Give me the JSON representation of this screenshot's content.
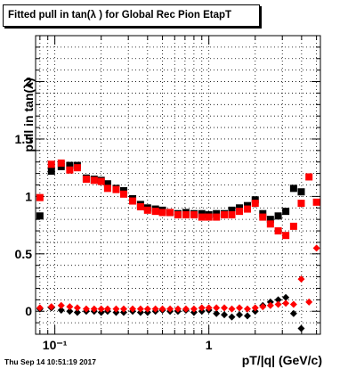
{
  "page": {
    "title": "Fitted pull in tan(λ ) for Global Rec Pion EtapT",
    "timestamp": "Thu Sep 14 10:51:19 2017"
  },
  "chart_data": {
    "type": "scatter",
    "title": "Fitted pull in tan(λ ) for Global Rec Pion EtapT",
    "xlabel": "pT/|q| (GeV/c)",
    "ylabel": "pull in tan(λ)",
    "xscale": "log",
    "xlim": [
      0.075,
      5.3
    ],
    "ylim": [
      -0.2,
      2.4
    ],
    "grid": true,
    "x_ticklabels": [
      "10⁻¹",
      "1"
    ],
    "y_ticks": [
      0,
      0.5,
      1,
      1.5,
      2
    ],
    "y_ticklabels": [
      "0",
      "0.5",
      "1",
      "1.5",
      "2"
    ],
    "colors": {
      "black_series": "#000000",
      "red_series": "#ff0000"
    },
    "x": [
      0.08,
      0.095,
      0.11,
      0.125,
      0.14,
      0.16,
      0.18,
      0.2,
      0.22,
      0.25,
      0.28,
      0.32,
      0.36,
      0.4,
      0.45,
      0.5,
      0.56,
      0.63,
      0.71,
      0.8,
      0.9,
      1.0,
      1.12,
      1.26,
      1.41,
      1.58,
      1.78,
      2.0,
      2.24,
      2.51,
      2.82,
      3.16,
      3.55,
      3.98,
      4.47,
      5.0
    ],
    "series": [
      {
        "marker": "square",
        "color": "#000000",
        "values": [
          0.83,
          1.22,
          1.26,
          1.27,
          1.27,
          1.16,
          1.15,
          1.14,
          1.11,
          1.07,
          1.05,
          0.98,
          0.93,
          0.9,
          0.89,
          0.88,
          0.86,
          0.85,
          0.86,
          0.85,
          0.85,
          0.84,
          0.85,
          0.85,
          0.88,
          0.9,
          0.92,
          0.97,
          0.85,
          0.8,
          0.83,
          0.87,
          1.07,
          1.04,
          null,
          null
        ]
      },
      {
        "marker": "square",
        "color": "#ff0000",
        "values": [
          0.99,
          1.28,
          1.29,
          1.23,
          1.25,
          1.15,
          1.14,
          1.13,
          1.07,
          1.06,
          1.02,
          0.96,
          0.91,
          0.88,
          0.87,
          0.86,
          0.86,
          0.84,
          0.84,
          0.84,
          0.82,
          0.82,
          0.82,
          0.84,
          0.84,
          0.87,
          0.89,
          0.94,
          0.82,
          0.76,
          0.7,
          0.66,
          0.74,
          0.94,
          1.17,
          0.95
        ]
      },
      {
        "marker": "diamond",
        "color": "#000000",
        "values": [
          0.02,
          0.03,
          0.01,
          0.0,
          -0.01,
          0.0,
          0.0,
          -0.01,
          0.0,
          -0.01,
          -0.01,
          0.0,
          -0.01,
          -0.01,
          0.0,
          0.01,
          0.0,
          0.0,
          0.01,
          -0.01,
          0.0,
          0.01,
          -0.02,
          -0.03,
          -0.05,
          -0.03,
          -0.04,
          0.0,
          0.05,
          0.08,
          0.1,
          0.12,
          -0.02,
          -0.15,
          null,
          null
        ]
      },
      {
        "marker": "diamond",
        "color": "#ff0000",
        "values": [
          0.03,
          0.04,
          0.05,
          0.04,
          0.03,
          0.02,
          0.02,
          0.02,
          0.02,
          0.02,
          0.02,
          0.02,
          0.02,
          0.02,
          0.02,
          0.02,
          0.02,
          0.02,
          0.02,
          0.02,
          0.03,
          0.03,
          0.03,
          0.03,
          0.02,
          0.03,
          0.02,
          0.03,
          0.04,
          0.05,
          0.06,
          0.07,
          0.06,
          0.28,
          0.08,
          0.55
        ]
      }
    ]
  }
}
